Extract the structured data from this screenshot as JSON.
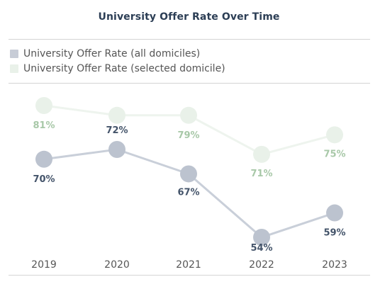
{
  "colors": {
    "all": "#bcc3cf",
    "all_label": "#44546a",
    "sel": "#e9f1e9",
    "sel_label": "#a8c8a8"
  },
  "chart_data": {
    "type": "line",
    "title": "University Offer Rate Over Time",
    "x": [
      "2019",
      "2020",
      "2021",
      "2022",
      "2023"
    ],
    "series": [
      {
        "name": "University Offer Rate (all domiciles)",
        "values": [
          70,
          72,
          67,
          54,
          59
        ],
        "labels": [
          "70%",
          "72%",
          "67%",
          "54%",
          "59%"
        ]
      },
      {
        "name": "University Offer Rate (selected domicile)",
        "values": [
          81,
          79,
          79,
          71,
          75
        ],
        "labels": [
          "81%",
          "",
          "79%",
          "71%",
          "75%"
        ]
      }
    ],
    "xlabel": "",
    "ylabel": "",
    "ylim": [
      50,
      85
    ],
    "grid": false,
    "legend": "top-left"
  }
}
